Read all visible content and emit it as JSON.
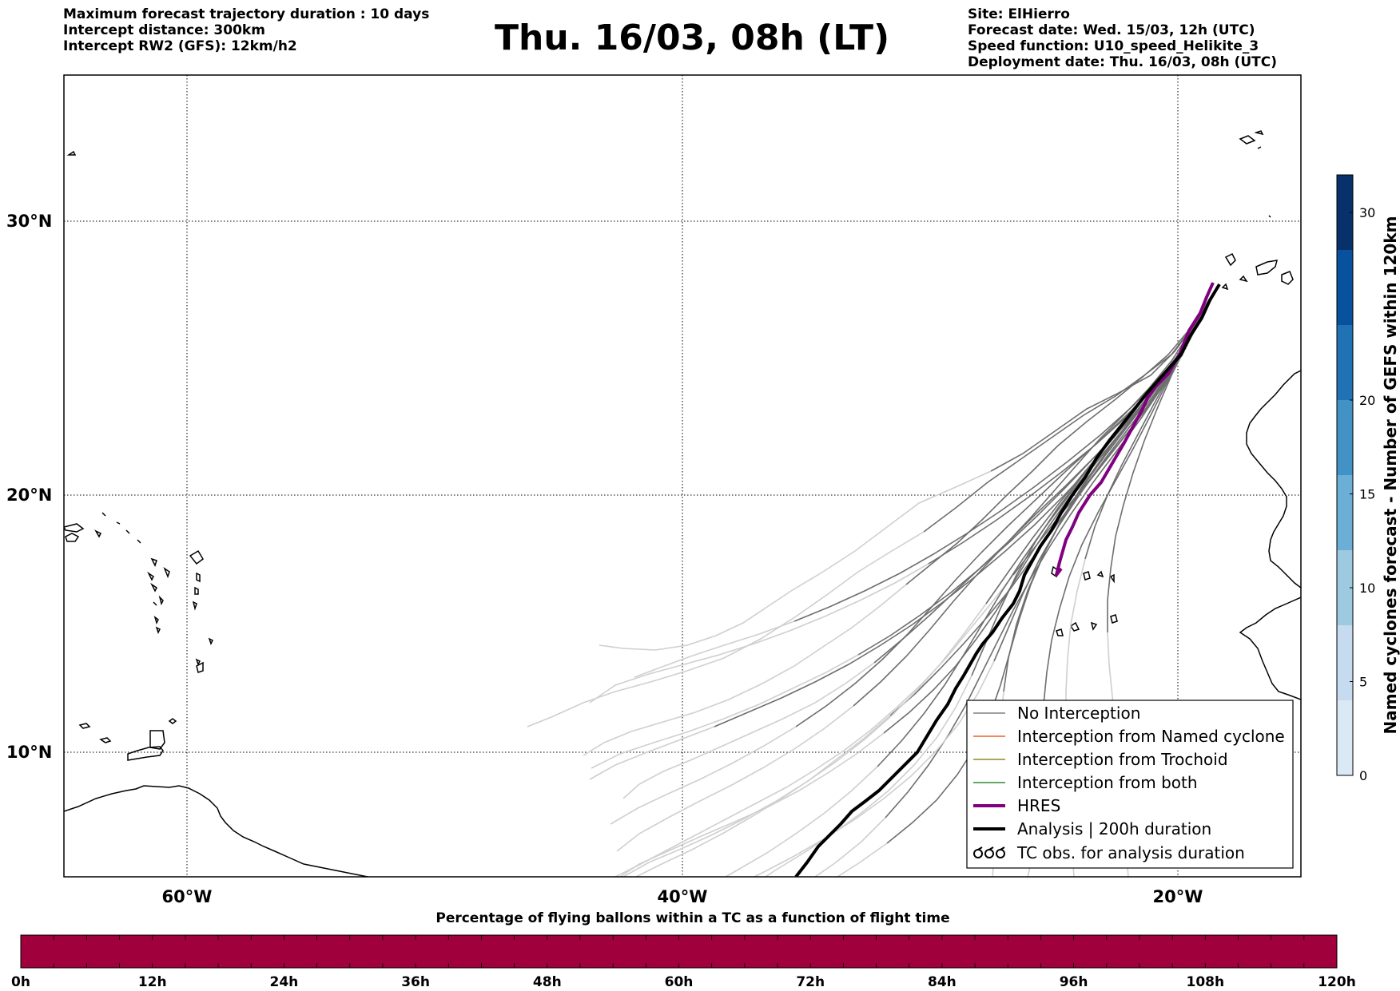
{
  "header_left": [
    "Maximum forecast trajectory duration : 10 days",
    "Intercept distance: 300km",
    "Intercept RW2 (GFS):  12km/h2"
  ],
  "title": "Thu. 16/03, 08h (LT)",
  "header_right": [
    "Site: ElHierro",
    "Forecast date: Wed. 15/03, 12h (UTC)",
    "Speed function: U10_speed_Helikite_3",
    "Deployment date: Thu. 16/03, 08h (UTC)"
  ],
  "map": {
    "lat_labels": [
      "30°N",
      "20°N",
      "10°N"
    ],
    "lon_labels": [
      "60°W",
      "40°W",
      "20°W"
    ],
    "gridlines": "dotted"
  },
  "legend": {
    "placement": "lower-right",
    "items": [
      {
        "label": "No Interception",
        "color": "#808080",
        "style": "line"
      },
      {
        "label": "Interception from Named cyclone",
        "color": "#e8632c",
        "style": "line"
      },
      {
        "label": "Interception from Trochoid",
        "color": "#8a8a2a",
        "style": "line"
      },
      {
        "label": "Interception from both",
        "color": "#2e8b2e",
        "style": "line"
      },
      {
        "label": "HRES",
        "color": "#800080",
        "style": "thick-line"
      },
      {
        "label": "Analysis | 200h duration",
        "color": "#000000",
        "style": "thick-line"
      },
      {
        "label": "TC obs. for analysis duration",
        "color": "#000000",
        "style": "tc-symbols"
      }
    ]
  },
  "colorbar_right": {
    "label": "Named cyclones forecast - Number of GEFS within 120km",
    "ticks": [
      "0",
      "5",
      "10",
      "15",
      "20",
      "30"
    ],
    "range": [
      0,
      32
    ],
    "colors": [
      "#dbe8f5",
      "#c6dbef",
      "#9ecae1",
      "#6baed6",
      "#4292c6",
      "#2171b5",
      "#08519c",
      "#08306b"
    ]
  },
  "timeline": {
    "title": "Percentage of flying ballons within a TC as a function of flight time",
    "labels": [
      "0h",
      "12h",
      "24h",
      "36h",
      "48h",
      "60h",
      "72h",
      "84h",
      "96h",
      "108h",
      "120h"
    ],
    "bar_color": "#a0003c"
  },
  "colors": {
    "ensemble_dark": "#6e6e6e",
    "ensemble_light": "#cfcfcf",
    "hres": "#800080",
    "analysis": "#000000"
  }
}
